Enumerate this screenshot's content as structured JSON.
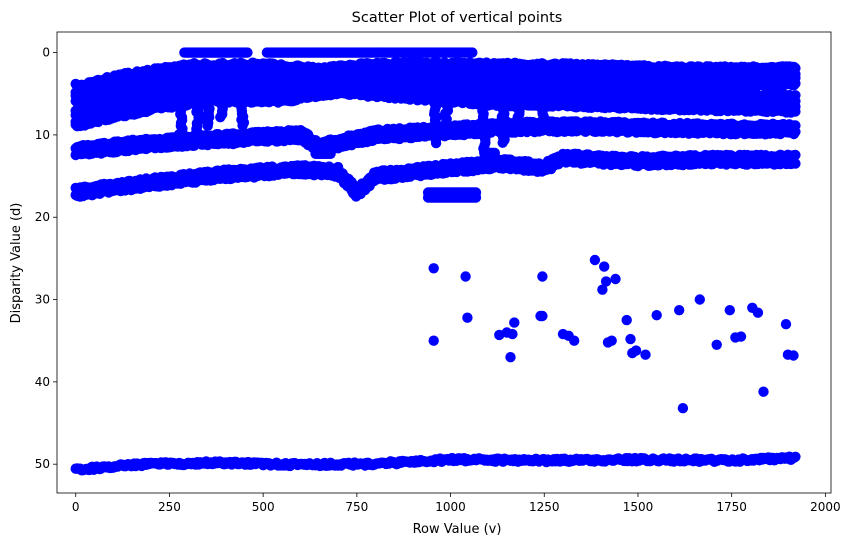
{
  "chart_data": {
    "type": "scatter",
    "title": "Scatter Plot of vertical points",
    "xlabel": "Row Value (v)",
    "ylabel": "Disparity Value (d)",
    "xlim": [
      -50,
      2015
    ],
    "ylim": [
      53.5,
      -2.5
    ],
    "y_inverted": true,
    "x_ticks": [
      0,
      250,
      500,
      750,
      1000,
      1250,
      1500,
      1750,
      2000
    ],
    "y_ticks": [
      0,
      10,
      20,
      30,
      40,
      50
    ],
    "grid": false,
    "marker_color": "#0000ff",
    "bands": [
      {
        "x": [
          0,
          150,
          300,
          500,
          650,
          750,
          900,
          1050,
          1200,
          1400,
          1600,
          1800,
          1920
        ],
        "y": [
          5.0,
          3.5,
          2.5,
          2.4,
          3.0,
          2.5,
          2.3,
          2.4,
          2.4,
          2.6,
          2.8,
          2.9,
          2.8
        ],
        "spread": 2.0
      },
      {
        "x": [
          0,
          100,
          200,
          350,
          550,
          700,
          850,
          1000,
          1150,
          1300,
          1500,
          1700,
          1920
        ],
        "y": [
          8.0,
          7.0,
          6.0,
          5.0,
          5.0,
          4.0,
          4.5,
          5.0,
          5.5,
          5.5,
          5.8,
          6.0,
          6.2
        ],
        "spread": 1.8
      },
      {
        "x": [
          0,
          200,
          400,
          600,
          650,
          700,
          800,
          1000,
          1100,
          1200,
          1400,
          1600,
          1800,
          1920
        ],
        "y": [
          12.0,
          11.0,
          10.5,
          10.0,
          11.5,
          11.0,
          10.0,
          9.5,
          9.2,
          9.0,
          9.0,
          9.2,
          9.3,
          9.3
        ],
        "spread": 0.9
      },
      {
        "x": [
          0,
          200,
          400,
          600,
          700,
          750,
          800,
          1000,
          1150,
          1250,
          1300,
          1500,
          1700,
          1920
        ],
        "y": [
          17.0,
          15.8,
          14.8,
          14.2,
          14.5,
          17.0,
          15.0,
          14.0,
          13.5,
          14.0,
          12.8,
          13.2,
          13.0,
          13.0
        ],
        "spread": 0.8
      },
      {
        "x": [
          0,
          200,
          400,
          600,
          800,
          1000,
          1250,
          1500,
          1750,
          1920
        ],
        "y": [
          50.8,
          50.1,
          50.0,
          50.2,
          50.1,
          49.6,
          49.7,
          49.6,
          49.7,
          49.4
        ],
        "spread": 0.3
      }
    ],
    "top_segments": [
      [
        290,
        460,
        0.0
      ],
      [
        510,
        1060,
        0.0
      ]
    ],
    "vertical_segments": [
      [
        280,
        4,
        11
      ],
      [
        325,
        3,
        10
      ],
      [
        355,
        4,
        9
      ],
      [
        390,
        4,
        8
      ],
      [
        445,
        5,
        9
      ],
      [
        960,
        4,
        11
      ],
      [
        990,
        6,
        10
      ],
      [
        1090,
        5,
        12
      ],
      [
        1140,
        5,
        11
      ],
      [
        1180,
        4,
        9
      ],
      [
        1250,
        6,
        8
      ]
    ],
    "blob_segments": [
      [
        940,
        1070,
        17.3
      ],
      [
        640,
        680,
        12.0
      ],
      [
        1090,
        1120,
        12.5
      ]
    ],
    "points": [
      [
        955,
        26.2
      ],
      [
        955,
        35.0
      ],
      [
        1040,
        27.2
      ],
      [
        1045,
        32.2
      ],
      [
        1160,
        37.0
      ],
      [
        1165,
        34.2
      ],
      [
        1170,
        32.8
      ],
      [
        1130,
        34.3
      ],
      [
        1150,
        34.0
      ],
      [
        1245,
        27.2
      ],
      [
        1240,
        32.0
      ],
      [
        1245,
        32.0
      ],
      [
        1300,
        34.2
      ],
      [
        1315,
        34.4
      ],
      [
        1330,
        35.0
      ],
      [
        1385,
        25.2
      ],
      [
        1405,
        28.8
      ],
      [
        1410,
        26.0
      ],
      [
        1415,
        27.8
      ],
      [
        1420,
        35.2
      ],
      [
        1440,
        27.5
      ],
      [
        1430,
        35.0
      ],
      [
        1470,
        32.5
      ],
      [
        1480,
        34.8
      ],
      [
        1485,
        36.5
      ],
      [
        1495,
        36.2
      ],
      [
        1520,
        36.7
      ],
      [
        1550,
        31.9
      ],
      [
        1610,
        31.3
      ],
      [
        1620,
        43.2
      ],
      [
        1665,
        30.0
      ],
      [
        1710,
        35.5
      ],
      [
        1745,
        31.3
      ],
      [
        1760,
        34.6
      ],
      [
        1775,
        34.5
      ],
      [
        1805,
        31.0
      ],
      [
        1820,
        31.6
      ],
      [
        1835,
        41.2
      ],
      [
        1895,
        33.0
      ],
      [
        1900,
        36.7
      ],
      [
        1915,
        36.8
      ]
    ]
  }
}
